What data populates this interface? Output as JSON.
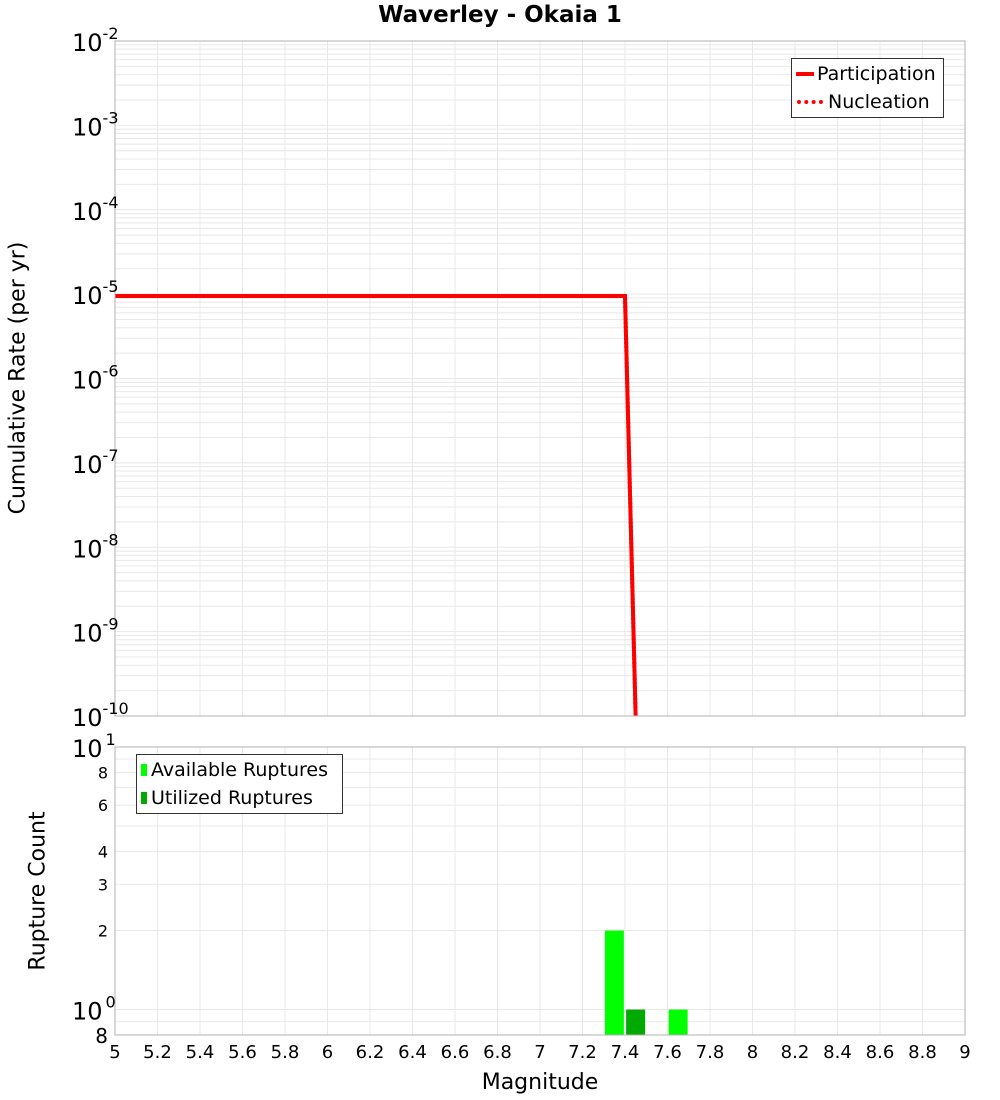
{
  "title": "Waverley - Okaia 1",
  "top_plot": {
    "ylabel": "Cumulative Rate (per yr)",
    "legend": [
      {
        "label": "Participation",
        "style": "solid",
        "color": "#ff0000"
      },
      {
        "label": "Nucleation",
        "style": "dotted",
        "color": "#ff0000"
      }
    ],
    "yticks": [
      "-2",
      "-3",
      "-4",
      "-5",
      "-6",
      "-7",
      "-8",
      "-9",
      "-10"
    ]
  },
  "bottom_plot": {
    "ylabel": "Rupture Count",
    "legend": [
      {
        "label": "Available Ruptures",
        "color": "#00ff00"
      },
      {
        "label": "Utilized Ruptures",
        "color": "#00aa00"
      }
    ],
    "yticks_minor": [
      "8",
      "6",
      "4",
      "3",
      "2"
    ],
    "ytick_major_exponents": [
      "1",
      "0"
    ],
    "ytick_bottom": "8"
  },
  "xlabel": "Magnitude",
  "xticks": [
    "5",
    "5.2",
    "5.4",
    "5.6",
    "5.8",
    "6",
    "6.2",
    "6.4",
    "6.6",
    "6.8",
    "7",
    "7.2",
    "7.4",
    "7.6",
    "7.8",
    "8",
    "8.2",
    "8.4",
    "8.6",
    "8.8",
    "9"
  ],
  "chart_data": [
    {
      "type": "line",
      "title": "Waverley - Okaia 1",
      "xlabel": "Magnitude",
      "ylabel": "Cumulative Rate (per yr)",
      "yscale": "log",
      "xlim": [
        5,
        9
      ],
      "ylim": [
        1e-10,
        0.01
      ],
      "grid": true,
      "legend_position": "upper right",
      "series": [
        {
          "name": "Participation",
          "style": "solid",
          "color": "#ff0000",
          "x": [
            5.0,
            7.4,
            7.45
          ],
          "y": [
            9.5e-06,
            9.5e-06,
            1e-10
          ]
        },
        {
          "name": "Nucleation",
          "style": "dotted",
          "color": "#ff0000",
          "x": [
            5.0,
            7.4,
            7.45
          ],
          "y": [
            9.5e-06,
            9.5e-06,
            1e-10
          ]
        }
      ]
    },
    {
      "type": "bar",
      "xlabel": "Magnitude",
      "ylabel": "Rupture Count",
      "yscale": "log",
      "xlim": [
        5,
        9
      ],
      "ylim": [
        0.8,
        10
      ],
      "grid": true,
      "legend_position": "upper left",
      "series": [
        {
          "name": "Available Ruptures",
          "color": "#00ff00",
          "x": [
            7.35,
            7.65
          ],
          "values": [
            2,
            1
          ]
        },
        {
          "name": "Utilized Ruptures",
          "color": "#00aa00",
          "x": [
            7.45
          ],
          "values": [
            1
          ]
        }
      ]
    }
  ]
}
